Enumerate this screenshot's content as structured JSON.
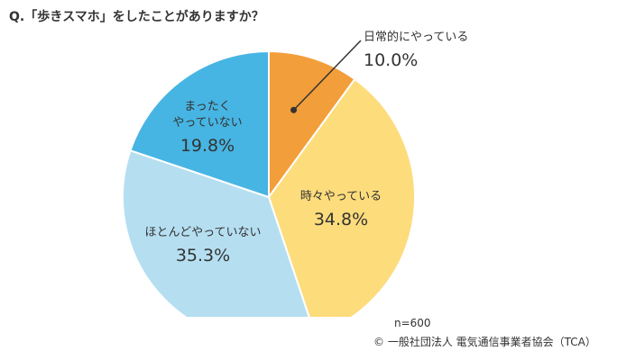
{
  "question": "Q.「歩きスマホ」をしたことがありますか？",
  "chart_data": {
    "type": "pie",
    "title": "Q.「歩きスマホ」をしたことがありますか？",
    "slices": [
      {
        "name": "日常的にやっている",
        "lines": [
          "日常的にやっている"
        ],
        "label": "10.0%",
        "value": 10.0,
        "color": "#F29E3A"
      },
      {
        "name": "時々やっている",
        "lines": [
          "時々やっている"
        ],
        "label": "34.8%",
        "value": 34.8,
        "color": "#FDDC7C"
      },
      {
        "name": "ほとんどやっていない",
        "lines": [
          "ほとんどやっていない"
        ],
        "label": "35.3%",
        "value": 35.3,
        "color": "#B5DFF1"
      },
      {
        "name": "まったくやっていない",
        "lines": [
          "まったく",
          "やっていない"
        ],
        "label": "19.8%",
        "value": 19.8,
        "color": "#47B5E3"
      }
    ],
    "start_angle_deg": 0,
    "direction": "clockwise"
  },
  "footer": {
    "sample": "n=600",
    "credit": "© 一般社団法人 電気通信事業者協会（TCA）"
  }
}
